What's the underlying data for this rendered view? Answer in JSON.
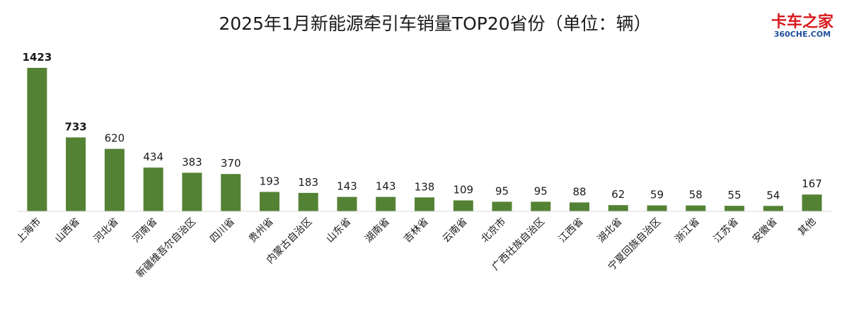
{
  "logo": {
    "main_text": "卡车之家",
    "sub_text": "360CHE.COM"
  },
  "chart_data": {
    "type": "bar",
    "title": "2025年1月新能源牵引车销量TOP20省份（单位：辆）",
    "xlabel": "",
    "ylabel": "",
    "ylim": [
      0,
      1500
    ],
    "grid": false,
    "legend": "none",
    "bar_color": "#548235",
    "categories": [
      "上海市",
      "山西省",
      "河北省",
      "河南省",
      "新疆维吾尔自治区",
      "四川省",
      "贵州省",
      "内蒙古自治区",
      "山东省",
      "湖南省",
      "吉林省",
      "云南省",
      "北京市",
      "广西壮族自治区",
      "江西省",
      "湖北省",
      "宁夏回族自治区",
      "浙江省",
      "江苏省",
      "安徽省",
      "其他"
    ],
    "values": [
      1423,
      733,
      620,
      434,
      383,
      370,
      193,
      183,
      143,
      143,
      138,
      109,
      95,
      95,
      88,
      62,
      59,
      58,
      55,
      54,
      167
    ],
    "bold_labels": [
      true,
      true,
      false,
      false,
      false,
      false,
      false,
      false,
      false,
      false,
      false,
      false,
      false,
      false,
      false,
      false,
      false,
      false,
      false,
      false,
      false
    ]
  }
}
